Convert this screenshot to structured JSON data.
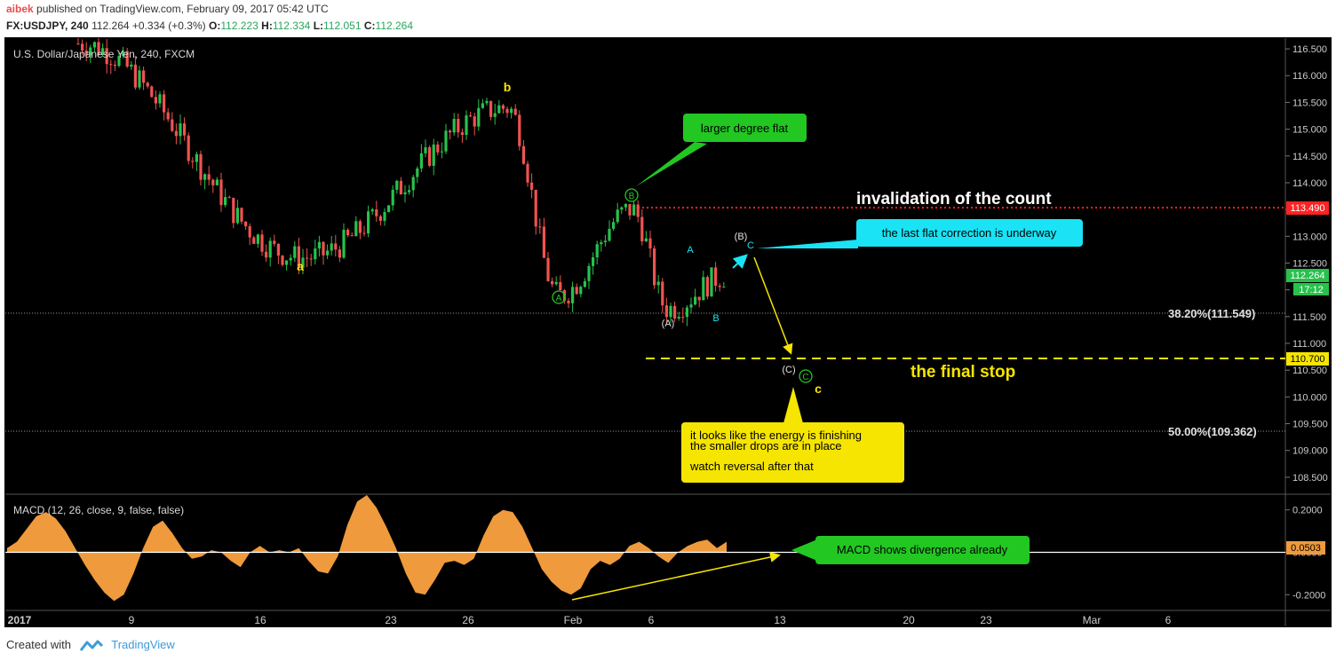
{
  "header": {
    "user": "aibek",
    "published": "published on TradingView.com, February 09, 2017 05:42 UTC",
    "symbol": "FX:USDJPY, 240",
    "last": "112.264",
    "change": "+0.334 (+0.3%)",
    "o_label": "O:",
    "o": "112.223",
    "h_label": "H:",
    "h": "112.334",
    "l_label": "L:",
    "l": "112.051",
    "c_label": "C:",
    "c": "112.264"
  },
  "footer": {
    "created": "Created with",
    "brand": "TradingView"
  },
  "colors": {
    "up": "#27c24c",
    "down": "#ef5350",
    "macd": "#ef9a3c",
    "annot_green": "#22c722",
    "annot_cyan": "#19e3f5",
    "annot_yellow": "#f5e500"
  },
  "chart_data": [
    {
      "type": "candlestick",
      "title": "U.S. Dollar/Japanese Yen, 240, FXCM",
      "ylim": [
        108.2,
        116.7
      ],
      "yticks": [
        "116.500",
        "116.000",
        "115.500",
        "115.000",
        "114.500",
        "114.000",
        "113.500",
        "113.000",
        "112.500",
        "112.000",
        "111.500",
        "111.000",
        "110.500",
        "110.000",
        "109.500",
        "109.000",
        "108.500"
      ],
      "xticks": [
        "2017",
        "9",
        "16",
        "23",
        "26",
        "Feb",
        "6",
        "13",
        "20",
        "23",
        "Mar",
        "6"
      ],
      "price_label": "112.264",
      "countdown": "17:12",
      "keypoints": [
        {
          "label": "2017 open",
          "price": 116.6
        },
        {
          "label": "a",
          "price": 112.6
        },
        {
          "label": "b",
          "price": 115.4
        },
        {
          "label": "A",
          "price": 111.9
        },
        {
          "label": "B",
          "price": 113.5
        },
        {
          "label": "(A)",
          "price": 111.65
        },
        {
          "label": "last",
          "price": 112.264
        }
      ],
      "levels": [
        {
          "label": "invalidation of the count",
          "price": 113.49,
          "tag": "113.490",
          "color": "#ff2222"
        },
        {
          "label": "38.20%(111.549)",
          "price": 111.549
        },
        {
          "label": "the final stop",
          "price": 110.7,
          "tag": "110.700",
          "color": "#f5e500"
        },
        {
          "label": "50.00%(109.362)",
          "price": 109.362
        }
      ],
      "wave_labels": [
        "a",
        "b",
        "c",
        "A",
        "B",
        "C",
        "(A)",
        "(B)",
        "(C)",
        "A",
        "B",
        "C"
      ],
      "annotations": {
        "larger": "larger degree flat",
        "flat": "the last flat correction is underway",
        "energy1": "it looks like the energy is finishing",
        "energy2": "the smaller drops are in place",
        "energy3": "watch reversal after that"
      }
    },
    {
      "type": "area",
      "title": "MACD (12, 26, close, 9, false, false)",
      "ylim": [
        -0.27,
        0.27
      ],
      "yticks": [
        "0.2000",
        "0.0000",
        "-0.2000"
      ],
      "last_value": "0.0503",
      "values": [
        0.02,
        0.05,
        0.11,
        0.17,
        0.19,
        0.16,
        0.1,
        0.02,
        -0.06,
        -0.13,
        -0.19,
        -0.23,
        -0.2,
        -0.1,
        0.02,
        0.12,
        0.15,
        0.09,
        0.02,
        -0.03,
        -0.02,
        0.01,
        0.0,
        -0.04,
        -0.07,
        0.0,
        0.03,
        0.0,
        0.01,
        0.0,
        0.02,
        -0.04,
        -0.09,
        -0.1,
        -0.02,
        0.13,
        0.24,
        0.27,
        0.21,
        0.12,
        0.02,
        -0.1,
        -0.19,
        -0.2,
        -0.13,
        -0.05,
        -0.04,
        -0.06,
        -0.03,
        0.08,
        0.17,
        0.2,
        0.19,
        0.12,
        0.02,
        -0.08,
        -0.14,
        -0.18,
        -0.2,
        -0.17,
        -0.08,
        -0.04,
        -0.06,
        -0.03,
        0.03,
        0.05,
        0.02,
        -0.02,
        -0.05,
        0.0,
        0.03,
        0.05,
        0.06,
        0.02,
        0.05
      ],
      "annotation": "MACD shows divergence already"
    }
  ]
}
